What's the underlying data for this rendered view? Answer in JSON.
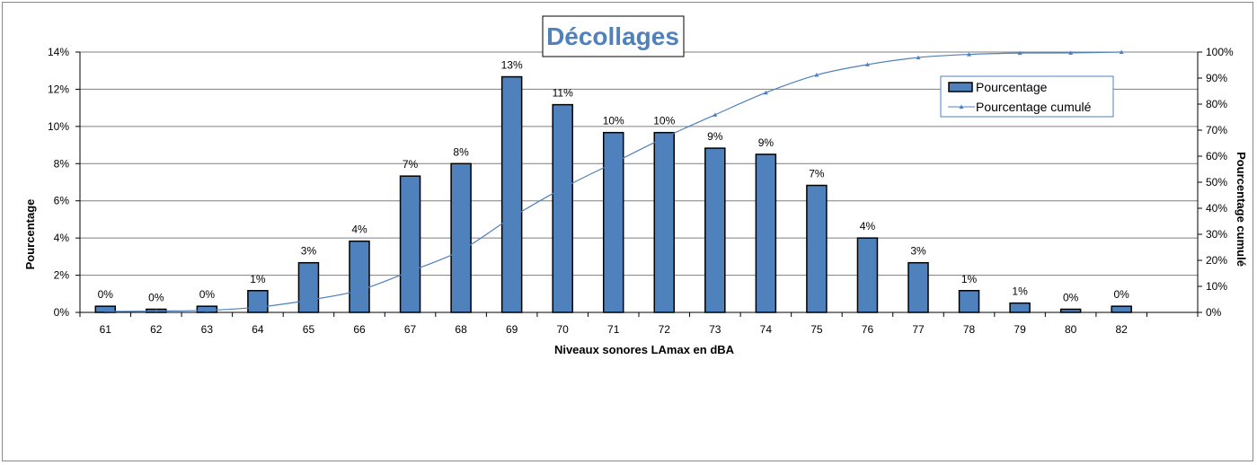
{
  "chart_data": {
    "type": "bar",
    "title": "Décollages",
    "xlabel": "Niveaux sonores LAmax en dBA",
    "ylabel": "Pourcentage",
    "y2label": "Pourcentage cumulé",
    "categories": [
      "61",
      "62",
      "63",
      "64",
      "65",
      "66",
      "67",
      "68",
      "69",
      "70",
      "71",
      "72",
      "73",
      "74",
      "75",
      "76",
      "77",
      "78",
      "79",
      "80",
      "82"
    ],
    "series": [
      {
        "name": "Pourcentage",
        "axis": "left",
        "kind": "bar",
        "values": [
          0.33,
          0.17,
          0.33,
          1.17,
          2.67,
          3.83,
          7.33,
          8.0,
          12.67,
          11.17,
          9.67,
          9.67,
          8.83,
          8.5,
          6.83,
          4.0,
          2.67,
          1.17,
          0.5,
          0.17,
          0.33
        ],
        "labels": [
          "0%",
          "0%",
          "0%",
          "1%",
          "3%",
          "4%",
          "7%",
          "8%",
          "13%",
          "11%",
          "10%",
          "10%",
          "9%",
          "9%",
          "7%",
          "4%",
          "3%",
          "1%",
          "1%",
          "0%",
          "0%"
        ]
      },
      {
        "name": "Pourcentage cumulé",
        "axis": "right",
        "kind": "line",
        "values": [
          0.3,
          0.5,
          0.8,
          2.0,
          4.7,
          8.5,
          15.8,
          23.8,
          36.5,
          47.7,
          57.4,
          67.1,
          75.9,
          84.4,
          91.2,
          95.2,
          97.9,
          99.1,
          99.6,
          99.7,
          100.0
        ]
      }
    ],
    "ylim": [
      0,
      14
    ],
    "yticks": [
      "0%",
      "2%",
      "4%",
      "6%",
      "8%",
      "10%",
      "12%",
      "14%"
    ],
    "y2lim": [
      0,
      100
    ],
    "y2ticks": [
      "0%",
      "10%",
      "20%",
      "30%",
      "40%",
      "50%",
      "60%",
      "70%",
      "80%",
      "90%",
      "100%"
    ],
    "grid": true,
    "legend": "top-right"
  },
  "colors": {
    "bar_fill": "#4f81bd",
    "bar_stroke": "#000000",
    "line": "#4f81bd",
    "title": "#4f81bd",
    "grid": "#7f7f7f"
  }
}
